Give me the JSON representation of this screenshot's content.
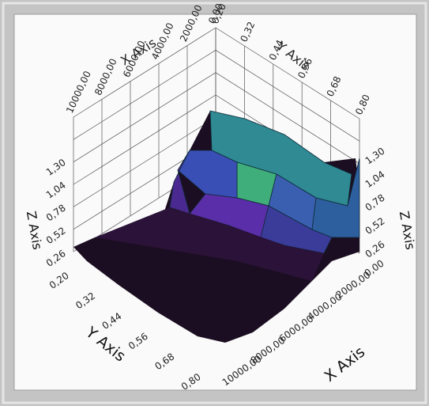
{
  "x_axis": {
    "title": "X Axis",
    "ticks": [
      "0,00",
      "2000,00",
      "4000,00",
      "6000,00",
      "8000,00",
      "10000,00"
    ]
  },
  "y_axis": {
    "title": "Y Axis",
    "ticks": [
      "0,20",
      "0,32",
      "0,44",
      "0,56",
      "0,68",
      "0,80"
    ]
  },
  "z_axis": {
    "title": "Z Axis",
    "ticks": [
      "0,26",
      "0,52",
      "0,78",
      "1,04",
      "1,30"
    ]
  }
}
